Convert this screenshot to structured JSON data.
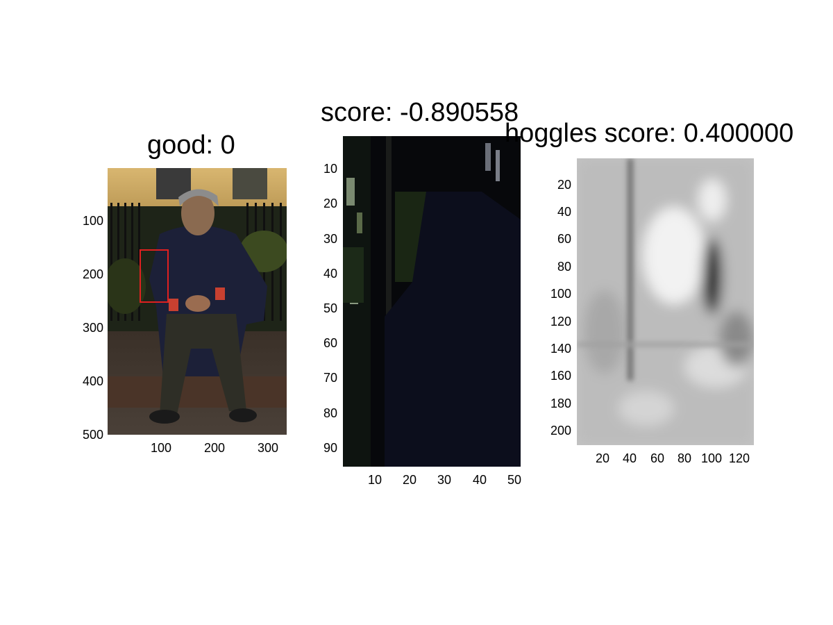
{
  "panels": [
    {
      "title": "good: 0",
      "image": "photo of a seated man on a bench with a red detection box",
      "y_ticks": [
        "100",
        "200",
        "300",
        "400",
        "500"
      ],
      "x_ticks": [
        "100",
        "200",
        "300"
      ],
      "box_color": "#e02020"
    },
    {
      "title": "score: -0.890558",
      "image": "cropped dark image patch",
      "y_ticks": [
        "10",
        "20",
        "30",
        "40",
        "50",
        "60",
        "70",
        "80",
        "90"
      ],
      "x_ticks": [
        "10",
        "20",
        "30",
        "40",
        "50"
      ]
    },
    {
      "title": "hoggles score: 0.400000",
      "image": "grayscale HOG inversion",
      "y_ticks": [
        "20",
        "40",
        "60",
        "80",
        "100",
        "120",
        "140",
        "160",
        "180",
        "200"
      ],
      "x_ticks": [
        "20",
        "40",
        "60",
        "80",
        "100",
        "120"
      ]
    }
  ]
}
